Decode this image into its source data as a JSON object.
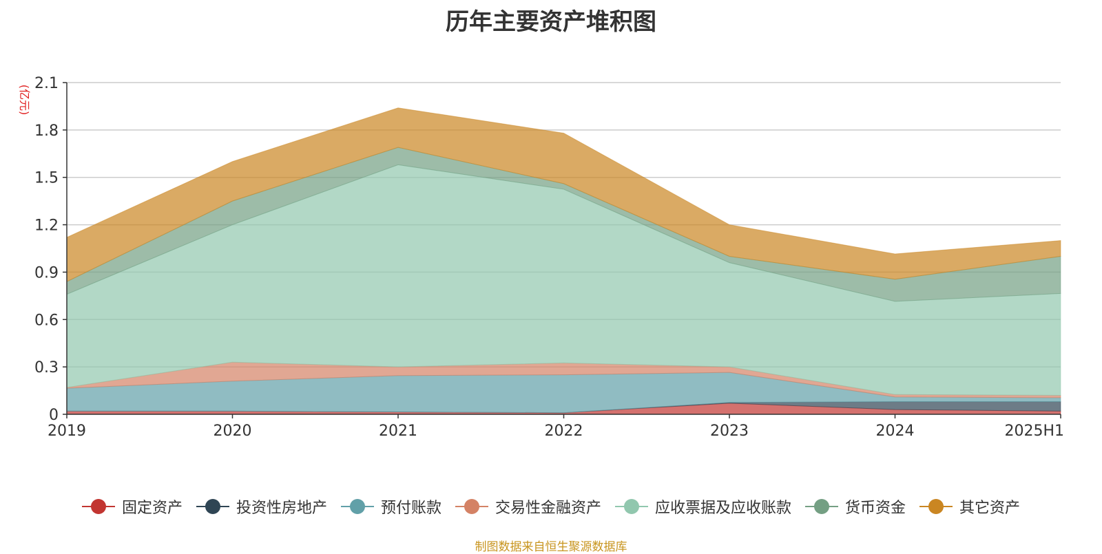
{
  "chart_data": {
    "type": "area",
    "stacked": true,
    "title": "历年主要资产堆积图",
    "unit": "(亿元)",
    "categories": [
      "2019",
      "2020",
      "2021",
      "2022",
      "2023",
      "2024",
      "2025H1"
    ],
    "y_ticks": [
      "0",
      "0.3",
      "0.6",
      "0.9",
      "1.2",
      "1.5",
      "1.8",
      "2.1"
    ],
    "ylim": [
      0,
      2.1
    ],
    "grid": true,
    "legend_position": "bottom",
    "series": [
      {
        "name": "固定资产",
        "color": "#c23531",
        "values": [
          0.02,
          0.02,
          0.015,
          0.01,
          0.07,
          0.03,
          0.02
        ]
      },
      {
        "name": "投资性房地产",
        "color": "#2f4554",
        "values": [
          0,
          0,
          0,
          0,
          0.005,
          0.05,
          0.06
        ]
      },
      {
        "name": "预付账款",
        "color": "#61a0a8",
        "values": [
          0.145,
          0.19,
          0.23,
          0.24,
          0.19,
          0.03,
          0.025
        ]
      },
      {
        "name": "交易性金融资产",
        "color": "#d48265",
        "values": [
          0.005,
          0.12,
          0.055,
          0.075,
          0.035,
          0.015,
          0.015
        ]
      },
      {
        "name": "应收票据及应收账款",
        "color": "#91c7ae",
        "values": [
          0.59,
          0.87,
          1.28,
          1.1,
          0.66,
          0.59,
          0.645
        ]
      },
      {
        "name": "货币资金",
        "color": "#749f83",
        "values": [
          0.08,
          0.15,
          0.11,
          0.035,
          0.04,
          0.14,
          0.235
        ]
      },
      {
        "name": "其它资产",
        "color": "#ca8622",
        "values": [
          0.28,
          0.25,
          0.25,
          0.32,
          0.2,
          0.16,
          0.1
        ]
      }
    ]
  },
  "source_note": "制图数据来自恒生聚源数据库"
}
